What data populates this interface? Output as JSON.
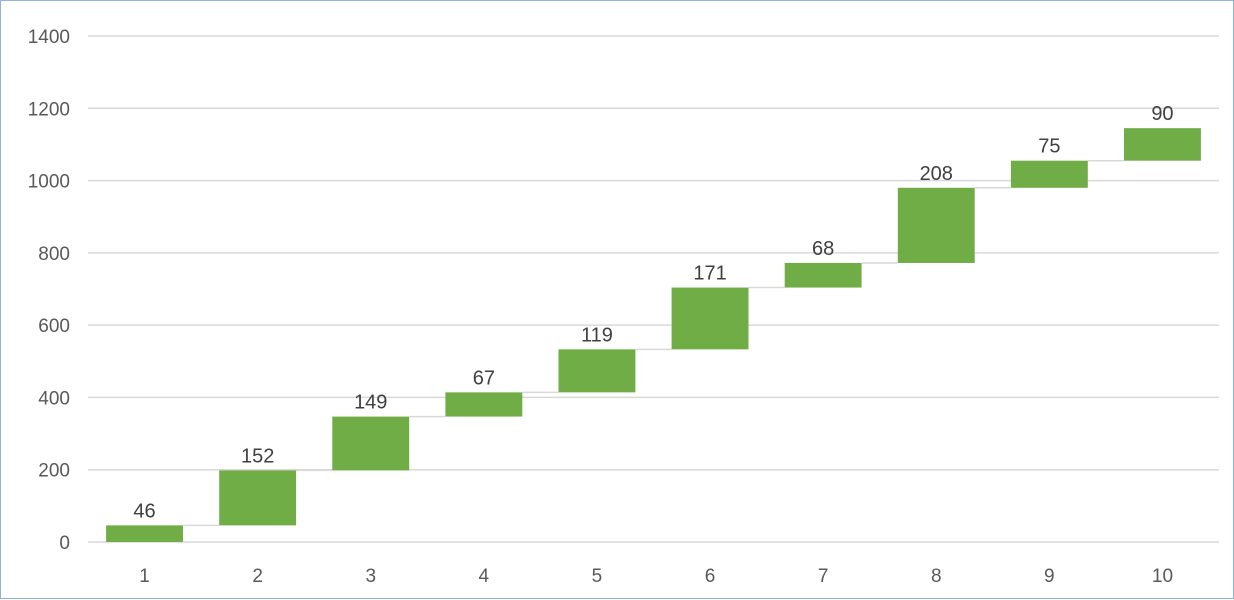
{
  "chart_data": {
    "type": "bar",
    "subtype": "waterfall",
    "categories": [
      "1",
      "2",
      "3",
      "4",
      "5",
      "6",
      "7",
      "8",
      "9",
      "10"
    ],
    "values": [
      46,
      152,
      149,
      67,
      119,
      171,
      68,
      208,
      75,
      90
    ],
    "data_labels": [
      "46",
      "152",
      "149",
      "67",
      "119",
      "171",
      "68",
      "208",
      "75",
      "90"
    ],
    "title": "",
    "xlabel": "",
    "ylabel": "",
    "ylim": [
      0,
      1400
    ],
    "yticks": [
      0,
      200,
      400,
      600,
      800,
      1000,
      1200,
      1400
    ],
    "ytick_labels": [
      "0",
      "200",
      "400",
      "600",
      "800",
      "1000",
      "1200",
      "1400"
    ],
    "grid": true,
    "connector_lines": true,
    "legend": "none",
    "colors": {
      "bar": "#70ad47",
      "grid": "#d9d9d9",
      "connector": "#d9d9d9",
      "text": "#595959",
      "border": "#8fb3d9"
    }
  }
}
